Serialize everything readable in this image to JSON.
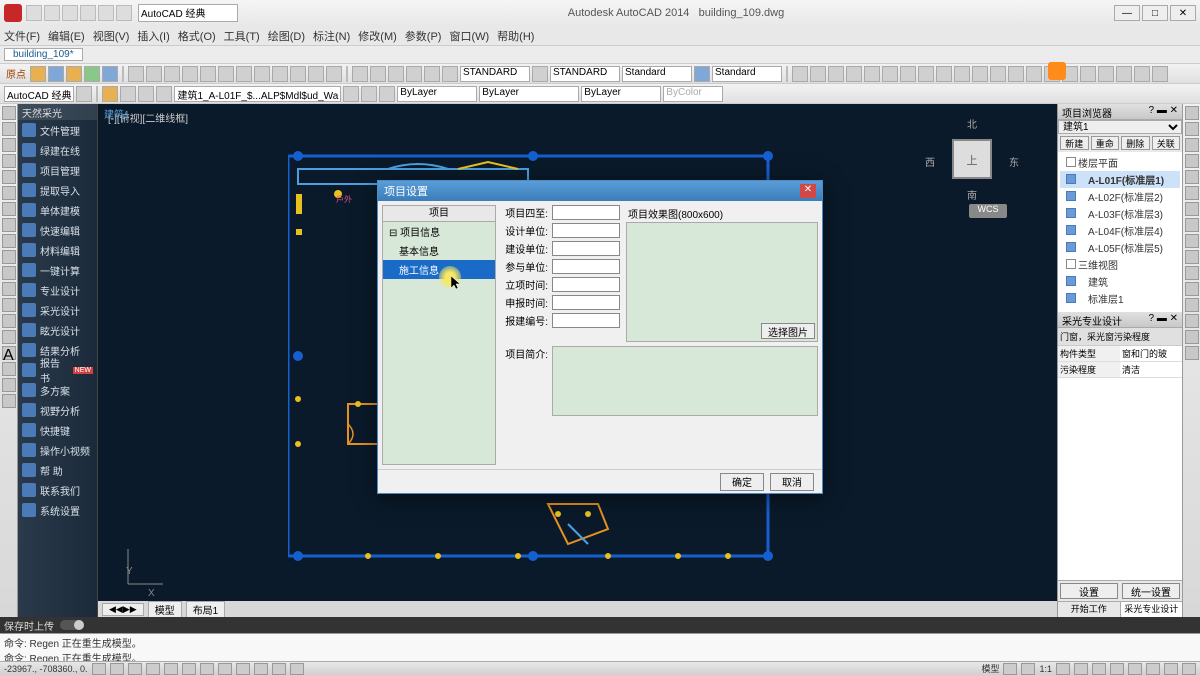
{
  "app": {
    "title": "Autodesk AutoCAD 2014",
    "filename": "building_109.dwg",
    "workspace": "AutoCAD 经典"
  },
  "menus": [
    "文件(F)",
    "编辑(E)",
    "视图(V)",
    "插入(I)",
    "格式(O)",
    "工具(T)",
    "绘图(D)",
    "标注(N)",
    "修改(M)",
    "参数(P)",
    "窗口(W)",
    "帮助(H)"
  ],
  "file_tab": "building_109*",
  "row1_label": "原点",
  "layer_combo": "建筑1_A-L01F_$...ALP$Mdl$ud_Wa",
  "bylayer": "ByLayer",
  "bycolor": "ByColor",
  "std_combos": [
    "STANDARD",
    "STANDARD",
    "Standard",
    "Standard"
  ],
  "ws_combo": "AutoCAD 经典",
  "side_header": "天然采光",
  "side_items": [
    "文件管理",
    "绿建在线",
    "项目管理",
    "提取导入",
    "单体建模",
    "快速编辑",
    "材料编辑",
    "一键计算",
    "专业设计",
    "采光设计",
    "眩光设计",
    "结果分析",
    "报告书",
    "多方案",
    "视野分析",
    "快捷键",
    "操作小视频",
    "帮  助",
    "联系我们",
    "系统设置"
  ],
  "side_hot_idx": 12,
  "vp_label": "[-][俯视][二维线框]",
  "compass": {
    "n": "北",
    "e": "东",
    "s": "南",
    "w": "西",
    "center": "上"
  },
  "wcs": "WCS",
  "model_tabs": [
    "模型",
    "布局1"
  ],
  "browser": {
    "title": "项目浏览器",
    "building": "建筑1",
    "btns": [
      "新建",
      "重命名",
      "删除",
      "关联楼层"
    ],
    "tree_hdr": "楼层平面",
    "floors": [
      "A-L01F(标准层1)",
      "A-L02F(标准层2)",
      "A-L03F(标准层3)",
      "A-L04F(标准层4)",
      "A-L05F(标准层5)"
    ],
    "sel_floor": 0,
    "three_d": "三维视图",
    "three_d_items": [
      "建筑",
      "标准层1"
    ]
  },
  "prop_panel": {
    "title": "采光专业设计",
    "row1_label": "门窗，采光窗污染程度",
    "rows": [
      [
        "构件类型",
        "窗和门的玻"
      ],
      [
        "污染程度",
        "清洁"
      ]
    ]
  },
  "bottom_tabs": [
    "开始工作",
    "采光专业设计"
  ],
  "bottom_btns": [
    "设置",
    "统一设置"
  ],
  "toggle_label": "保存时上传",
  "cmd": [
    "命令: Regen  正在重生成模型。",
    "命令: Regen  正在重生成模型。"
  ],
  "coords": "-23967., -708360., 0.",
  "status_right": [
    "模型",
    "1:1",
    "·"
  ],
  "dialog": {
    "title": "项目设置",
    "tree_hdr": "项目",
    "tree": [
      "项目信息",
      "基本信息",
      "施工信息"
    ],
    "sel": 2,
    "fields": [
      "项目四至:",
      "设计单位:",
      "建设单位:",
      "参与单位:",
      "立项时间:",
      "申报时间:",
      "报建编号:"
    ],
    "preview_label": "项目效果图(800x600)",
    "pick_btn": "选择图片",
    "desc_label": "项目简介:",
    "ok": "确定",
    "cancel": "取消"
  },
  "colors": {
    "canvas_bg": "#0a1a2a",
    "frame": "#1560d0",
    "dialog_tree_bg": "#d8e8d8",
    "dialog_sel": "#1a6ac8",
    "yellow_dot": "#e8c020",
    "orange_line": "#e89020"
  }
}
